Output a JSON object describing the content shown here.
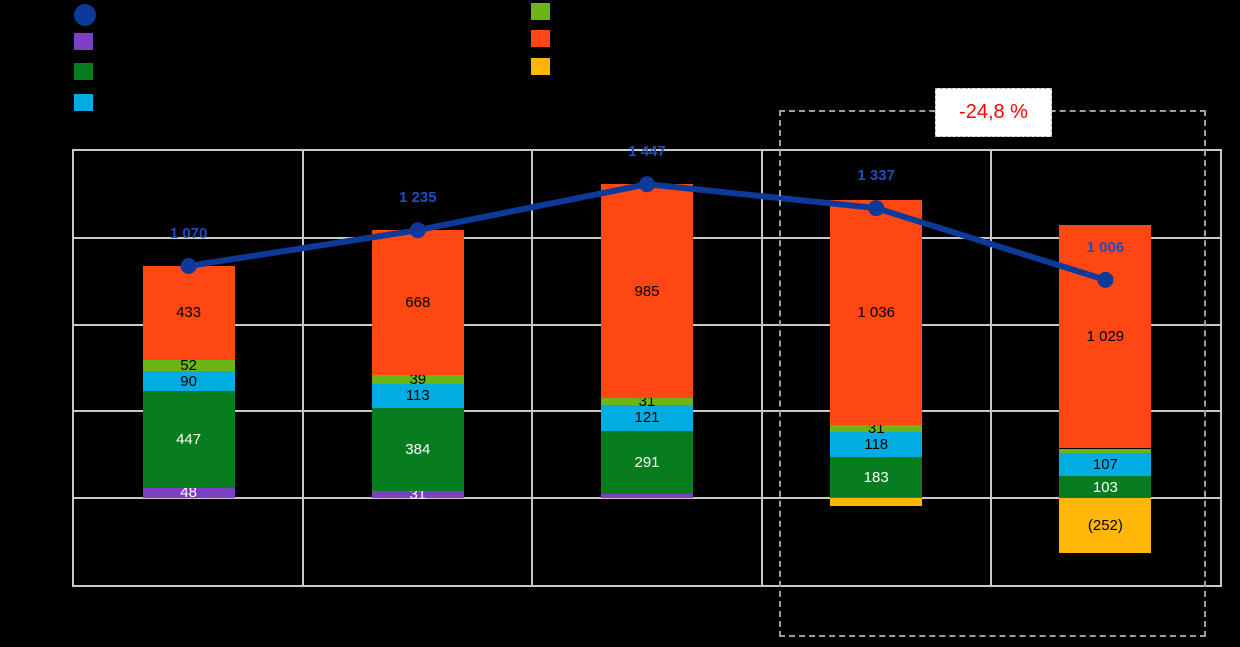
{
  "colors": {
    "background": "#000000",
    "grid": "#C8C8C8",
    "plot_border": "#C8C8C8",
    "dashed_box": "#9E9E9E",
    "annotation_bg": "#FFFFFF",
    "annotation_border": "#B4B4B4",
    "annotation_text": "#FF0000",
    "line": "#0D3A99",
    "line_label": "#1E4DC0",
    "label_dark": "#000000",
    "label_light": "#FFFFFF"
  },
  "series": {
    "line": {
      "color": "#0D3A99",
      "label_color": "dark"
    },
    "purple": {
      "color": "#7D3FC4",
      "label_color": "light"
    },
    "green": {
      "color": "#077D1F",
      "label_color": "light"
    },
    "cyan": {
      "color": "#00ACE2",
      "label_color": "dark"
    },
    "lime": {
      "color": "#6CB517",
      "label_color": "dark"
    },
    "orange": {
      "color": "#FF4713",
      "label_color": "dark"
    },
    "amber": {
      "color": "#FFB608",
      "label_color": "dark"
    }
  },
  "legend": {
    "left": [
      {
        "series": "line",
        "marker": "circle"
      },
      {
        "series": "purple",
        "marker": "square"
      },
      {
        "series": "green",
        "marker": "square"
      },
      {
        "series": "cyan",
        "marker": "square"
      }
    ],
    "right": [
      {
        "series": "lime",
        "marker": "square"
      },
      {
        "series": "orange",
        "marker": "square"
      },
      {
        "series": "amber",
        "marker": "square"
      }
    ]
  },
  "annotation": {
    "text": "-24,8 %"
  },
  "chart_data": {
    "type": "bar",
    "subtype": "stacked-bars-with-total-line",
    "ylim": [
      -400,
      1600
    ],
    "grid_step": 400,
    "grid": "on",
    "categories": [
      "",
      "",
      "",
      "",
      ""
    ],
    "bars": [
      {
        "segments": [
          {
            "series": "purple",
            "value": 48,
            "label": "48"
          },
          {
            "series": "green",
            "value": 447,
            "label": "447"
          },
          {
            "series": "cyan",
            "value": 90,
            "label": "90"
          },
          {
            "series": "lime",
            "value": 52,
            "label": "52"
          },
          {
            "series": "orange",
            "value": 433,
            "label": "433"
          }
        ]
      },
      {
        "segments": [
          {
            "series": "purple",
            "value": 31,
            "label": "31"
          },
          {
            "series": "green",
            "value": 384,
            "label": "384"
          },
          {
            "series": "cyan",
            "value": 113,
            "label": "113"
          },
          {
            "series": "lime",
            "value": 39,
            "label": "39"
          },
          {
            "series": "orange",
            "value": 668,
            "label": "668"
          }
        ]
      },
      {
        "segments": [
          {
            "series": "purple",
            "value": 19,
            "label": null
          },
          {
            "series": "green",
            "value": 291,
            "label": "291"
          },
          {
            "series": "cyan",
            "value": 121,
            "label": "121"
          },
          {
            "series": "lime",
            "value": 31,
            "label": "31"
          },
          {
            "series": "orange",
            "value": 985,
            "label": "985"
          }
        ]
      },
      {
        "segments": [
          {
            "series": "purple",
            "value": 5,
            "label": null
          },
          {
            "series": "green",
            "value": 183,
            "label": "183"
          },
          {
            "series": "cyan",
            "value": 118,
            "label": "118"
          },
          {
            "series": "lime",
            "value": 31,
            "label": "31"
          },
          {
            "series": "orange",
            "value": 1036,
            "label": "1 036"
          },
          {
            "series": "amber",
            "value": -36,
            "label": null
          }
        ]
      },
      {
        "segments": [
          {
            "series": "green",
            "value": 103,
            "label": "103"
          },
          {
            "series": "cyan",
            "value": 107,
            "label": "107"
          },
          {
            "series": "lime",
            "value": 19,
            "label": null
          },
          {
            "series": "orange",
            "value": 1029,
            "label": "1 029"
          },
          {
            "series": "amber",
            "value": -252,
            "label": "(252)"
          }
        ]
      }
    ],
    "line": {
      "values": [
        1070,
        1235,
        1447,
        1337,
        1006
      ],
      "labels": [
        "1 070",
        "1 235",
        "1 447",
        "1 337",
        "1 006"
      ]
    },
    "highlight": {
      "text": "-24,8 %",
      "covers_last_n_categories": 2
    }
  }
}
